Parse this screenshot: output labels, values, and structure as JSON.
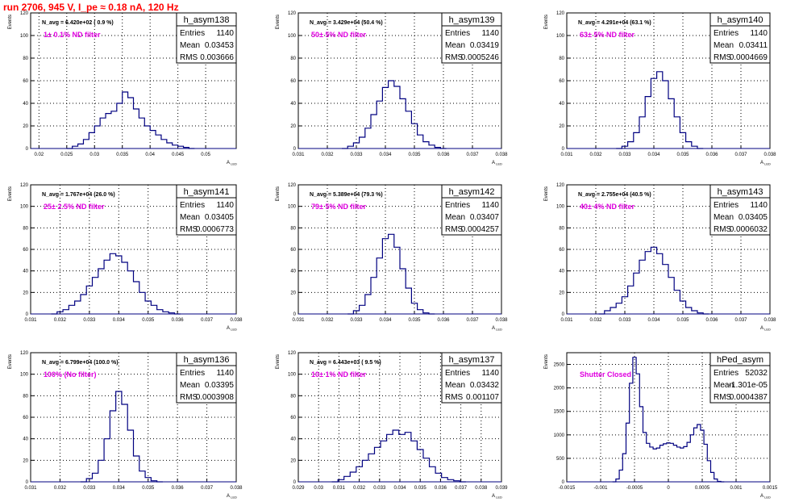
{
  "page_title": "run 2706,   945 V, I_pe ≈ 0.18 nA, 120 Hz",
  "colors": {
    "histogram": "#000080",
    "filter_label": "#e000e0",
    "title": "#ff0000",
    "grid": "#000000"
  },
  "chart_data": [
    {
      "type": "histogram",
      "name": "h_asym138",
      "stats": [
        [
          "Entries",
          "1140"
        ],
        [
          "Mean",
          "0.03453"
        ],
        [
          "RMS",
          "0.003666"
        ]
      ],
      "navg": "N_avg = 6.420e+02 ( 0.9 %)",
      "label": "1± 0.1% ND filter",
      "xlabel": "A_LED",
      "ylabel": "Events",
      "xlim": [
        0.0185,
        0.0555
      ],
      "ylim": [
        0,
        120
      ],
      "xticks": [
        "0.02",
        "0.025",
        "0.03",
        "0.035",
        "0.04",
        "0.045",
        "0.05"
      ],
      "yticks": [
        "0",
        "20",
        "40",
        "60",
        "80",
        "100",
        "120"
      ],
      "bins": [
        [
          0.0255,
          0
        ],
        [
          0.0265,
          2
        ],
        [
          0.0275,
          4
        ],
        [
          0.0285,
          8
        ],
        [
          0.0295,
          14
        ],
        [
          0.0305,
          20
        ],
        [
          0.0315,
          27
        ],
        [
          0.0325,
          31
        ],
        [
          0.0335,
          33
        ],
        [
          0.0345,
          40
        ],
        [
          0.0355,
          50
        ],
        [
          0.0365,
          45
        ],
        [
          0.0375,
          35
        ],
        [
          0.0385,
          27
        ],
        [
          0.0395,
          20
        ],
        [
          0.0405,
          16
        ],
        [
          0.0415,
          12
        ],
        [
          0.0425,
          8
        ],
        [
          0.0435,
          5
        ],
        [
          0.0445,
          3
        ],
        [
          0.0455,
          2
        ],
        [
          0.0465,
          1
        ],
        [
          0.0475,
          0
        ]
      ]
    },
    {
      "type": "histogram",
      "name": "h_asym139",
      "stats": [
        [
          "Entries",
          "1140"
        ],
        [
          "Mean",
          "0.03419"
        ],
        [
          "RMS",
          "0.0005246"
        ]
      ],
      "navg": "N_avg = 3.429e+04 (50.4 %)",
      "label": "50± 5% ND filter",
      "xlabel": "A_LED",
      "ylabel": "Events",
      "xlim": [
        0.031,
        0.038
      ],
      "ylim": [
        0,
        120
      ],
      "xticks": [
        "0.031",
        "0.032",
        "0.033",
        "0.034",
        "0.035",
        "0.036",
        "0.037",
        "0.038"
      ],
      "yticks": [
        "0",
        "20",
        "40",
        "60",
        "80",
        "100",
        "120"
      ],
      "bins": [
        [
          0.0326,
          0
        ],
        [
          0.0328,
          2
        ],
        [
          0.033,
          5
        ],
        [
          0.0332,
          10
        ],
        [
          0.0334,
          18
        ],
        [
          0.0336,
          30
        ],
        [
          0.0338,
          42
        ],
        [
          0.034,
          54
        ],
        [
          0.0342,
          60
        ],
        [
          0.0344,
          55
        ],
        [
          0.0346,
          44
        ],
        [
          0.0348,
          33
        ],
        [
          0.035,
          22
        ],
        [
          0.0352,
          12
        ],
        [
          0.0354,
          6
        ],
        [
          0.0356,
          3
        ],
        [
          0.0358,
          1
        ],
        [
          0.036,
          0
        ]
      ]
    },
    {
      "type": "histogram",
      "name": "h_asym140",
      "stats": [
        [
          "Entries",
          "1140"
        ],
        [
          "Mean",
          "0.03411"
        ],
        [
          "RMS",
          "0.0004669"
        ]
      ],
      "navg": "N_avg = 4.291e+04 (63.1 %)",
      "label": "63± 5% ND filter",
      "xlabel": "A_LED",
      "ylabel": "Events",
      "xlim": [
        0.031,
        0.038
      ],
      "ylim": [
        0,
        120
      ],
      "xticks": [
        "0.031",
        "0.032",
        "0.033",
        "0.034",
        "0.035",
        "0.036",
        "0.037",
        "0.038"
      ],
      "yticks": [
        "0",
        "20",
        "40",
        "60",
        "80",
        "100",
        "120"
      ],
      "bins": [
        [
          0.0328,
          0
        ],
        [
          0.033,
          2
        ],
        [
          0.0332,
          6
        ],
        [
          0.0334,
          14
        ],
        [
          0.0336,
          28
        ],
        [
          0.0338,
          46
        ],
        [
          0.034,
          62
        ],
        [
          0.0342,
          68
        ],
        [
          0.0344,
          60
        ],
        [
          0.0346,
          44
        ],
        [
          0.0348,
          28
        ],
        [
          0.035,
          14
        ],
        [
          0.0352,
          6
        ],
        [
          0.0354,
          2
        ],
        [
          0.0356,
          0
        ]
      ]
    },
    {
      "type": "histogram",
      "name": "h_asym141",
      "stats": [
        [
          "Entries",
          "1140"
        ],
        [
          "Mean",
          "0.03405"
        ],
        [
          "RMS",
          "0.0006773"
        ]
      ],
      "navg": "N_avg = 1.767e+04 (26.0 %)",
      "label": "25± 2.5% ND filter",
      "xlabel": "A_LED",
      "ylabel": "Events",
      "xlim": [
        0.031,
        0.038
      ],
      "ylim": [
        0,
        120
      ],
      "xticks": [
        "0.031",
        "0.032",
        "0.033",
        "0.034",
        "0.035",
        "0.036",
        "0.037",
        "0.038"
      ],
      "yticks": [
        "0",
        "20",
        "40",
        "60",
        "80",
        "100",
        "120"
      ],
      "bins": [
        [
          0.0318,
          0
        ],
        [
          0.032,
          2
        ],
        [
          0.0322,
          4
        ],
        [
          0.0324,
          8
        ],
        [
          0.0326,
          12
        ],
        [
          0.0328,
          18
        ],
        [
          0.033,
          26
        ],
        [
          0.0332,
          34
        ],
        [
          0.0334,
          42
        ],
        [
          0.0336,
          50
        ],
        [
          0.0338,
          56
        ],
        [
          0.034,
          54
        ],
        [
          0.0342,
          48
        ],
        [
          0.0344,
          40
        ],
        [
          0.0346,
          30
        ],
        [
          0.0348,
          20
        ],
        [
          0.035,
          12
        ],
        [
          0.0352,
          8
        ],
        [
          0.0354,
          4
        ],
        [
          0.0356,
          2
        ],
        [
          0.0358,
          1
        ],
        [
          0.036,
          0
        ]
      ]
    },
    {
      "type": "histogram",
      "name": "h_asym142",
      "stats": [
        [
          "Entries",
          "1140"
        ],
        [
          "Mean",
          "0.03407"
        ],
        [
          "RMS",
          "0.0004257"
        ]
      ],
      "navg": "N_avg = 5.389e+04 (79.3 %)",
      "label": "79± 5% ND filter",
      "xlabel": "A_LED",
      "ylabel": "Events",
      "xlim": [
        0.031,
        0.038
      ],
      "ylim": [
        0,
        120
      ],
      "xticks": [
        "0.031",
        "0.032",
        "0.033",
        "0.034",
        "0.035",
        "0.036",
        "0.037",
        "0.038"
      ],
      "yticks": [
        "0",
        "20",
        "40",
        "60",
        "80",
        "100",
        "120"
      ],
      "bins": [
        [
          0.0328,
          0
        ],
        [
          0.033,
          3
        ],
        [
          0.0332,
          8
        ],
        [
          0.0334,
          18
        ],
        [
          0.0336,
          34
        ],
        [
          0.0338,
          52
        ],
        [
          0.034,
          70
        ],
        [
          0.0342,
          74
        ],
        [
          0.0344,
          62
        ],
        [
          0.0346,
          42
        ],
        [
          0.0348,
          24
        ],
        [
          0.035,
          10
        ],
        [
          0.0352,
          4
        ],
        [
          0.0354,
          1
        ],
        [
          0.0356,
          0
        ]
      ]
    },
    {
      "type": "histogram",
      "name": "h_asym143",
      "stats": [
        [
          "Entries",
          "1140"
        ],
        [
          "Mean",
          "0.03405"
        ],
        [
          "RMS",
          "0.0006032"
        ]
      ],
      "navg": "N_avg = 2.755e+04 (40.5 %)",
      "label": "40± 4% ND filter",
      "xlabel": "A_LED",
      "ylabel": "Events",
      "xlim": [
        0.031,
        0.038
      ],
      "ylim": [
        0,
        120
      ],
      "xticks": [
        "0.031",
        "0.032",
        "0.033",
        "0.034",
        "0.035",
        "0.036",
        "0.037",
        "0.038"
      ],
      "yticks": [
        "0",
        "20",
        "40",
        "60",
        "80",
        "100",
        "120"
      ],
      "bins": [
        [
          0.0322,
          0
        ],
        [
          0.0324,
          3
        ],
        [
          0.0326,
          6
        ],
        [
          0.0328,
          10
        ],
        [
          0.033,
          16
        ],
        [
          0.0332,
          26
        ],
        [
          0.0334,
          38
        ],
        [
          0.0336,
          50
        ],
        [
          0.0338,
          58
        ],
        [
          0.034,
          62
        ],
        [
          0.0342,
          56
        ],
        [
          0.0344,
          46
        ],
        [
          0.0346,
          34
        ],
        [
          0.0348,
          22
        ],
        [
          0.035,
          12
        ],
        [
          0.0352,
          6
        ],
        [
          0.0354,
          3
        ],
        [
          0.0356,
          1
        ],
        [
          0.0358,
          0
        ]
      ]
    },
    {
      "type": "histogram",
      "name": "h_asym136",
      "stats": [
        [
          "Entries",
          "1140"
        ],
        [
          "Mean",
          "0.03395"
        ],
        [
          "RMS",
          "0.0003908"
        ]
      ],
      "navg": "N_avg = 6.799e+04 (100.0 %)",
      "label": "100% (No filter)",
      "xlabel": "A_LED",
      "ylabel": "Events",
      "xlim": [
        0.031,
        0.038
      ],
      "ylim": [
        0,
        120
      ],
      "xticks": [
        "0.031",
        "0.032",
        "0.033",
        "0.034",
        "0.035",
        "0.036",
        "0.037",
        "0.038"
      ],
      "yticks": [
        "0",
        "20",
        "40",
        "60",
        "80",
        "100",
        "120"
      ],
      "bins": [
        [
          0.0328,
          0
        ],
        [
          0.033,
          3
        ],
        [
          0.0332,
          8
        ],
        [
          0.0334,
          20
        ],
        [
          0.0336,
          40
        ],
        [
          0.0338,
          66
        ],
        [
          0.034,
          84
        ],
        [
          0.0342,
          72
        ],
        [
          0.0344,
          48
        ],
        [
          0.0346,
          24
        ],
        [
          0.0348,
          10
        ],
        [
          0.035,
          4
        ],
        [
          0.0352,
          1
        ],
        [
          0.0354,
          0
        ]
      ]
    },
    {
      "type": "histogram",
      "name": "h_asym137",
      "stats": [
        [
          "Entries",
          "1140"
        ],
        [
          "Mean",
          "0.03432"
        ],
        [
          "RMS",
          "0.001107"
        ]
      ],
      "navg": "N_avg = 6.443e+03 ( 9.5 %)",
      "label": "10± 1% ND filter",
      "xlabel": "A_LED",
      "ylabel": "Events",
      "xlim": [
        0.029,
        0.039
      ],
      "ylim": [
        0,
        120
      ],
      "xticks": [
        "0.029",
        "0.03",
        "0.031",
        "0.032",
        "0.033",
        "0.034",
        "0.035",
        "0.036",
        "0.037",
        "0.038",
        "0.039"
      ],
      "yticks": [
        "0",
        "20",
        "40",
        "60",
        "80",
        "100",
        "120"
      ],
      "bins": [
        [
          0.0308,
          0
        ],
        [
          0.0311,
          2
        ],
        [
          0.0314,
          5
        ],
        [
          0.0317,
          9
        ],
        [
          0.032,
          14
        ],
        [
          0.0323,
          20
        ],
        [
          0.0326,
          26
        ],
        [
          0.0329,
          32
        ],
        [
          0.0332,
          38
        ],
        [
          0.0335,
          44
        ],
        [
          0.0338,
          48
        ],
        [
          0.0341,
          44
        ],
        [
          0.0344,
          46
        ],
        [
          0.0347,
          38
        ],
        [
          0.035,
          30
        ],
        [
          0.0353,
          22
        ],
        [
          0.0356,
          14
        ],
        [
          0.0359,
          8
        ],
        [
          0.0362,
          4
        ],
        [
          0.0365,
          2
        ],
        [
          0.0368,
          1
        ],
        [
          0.0371,
          0
        ]
      ]
    },
    {
      "type": "histogram",
      "name": "hPed_asym",
      "stats": [
        [
          "Entries",
          "52032"
        ],
        [
          "Mean",
          "-1.301e-05"
        ],
        [
          "RMS",
          "0.0004387"
        ]
      ],
      "navg": "",
      "label": "Shutter Closed",
      "xlabel": "A_LED",
      "ylabel": "Events",
      "xlim": [
        -0.0015,
        0.0015
      ],
      "ylim": [
        0,
        2750
      ],
      "xticks": [
        "-0.0015",
        "-0.001",
        "-0.0005",
        "0",
        "0.0005",
        "0.001",
        "0.0015"
      ],
      "yticks": [
        "0",
        "500",
        "1000",
        "1500",
        "2000",
        "2500"
      ],
      "bins": [
        [
          -0.0008,
          0
        ],
        [
          -0.00075,
          60
        ],
        [
          -0.0007,
          250
        ],
        [
          -0.00065,
          600
        ],
        [
          -0.0006,
          1250
        ],
        [
          -0.00055,
          2100
        ],
        [
          -0.0005,
          2650
        ],
        [
          -0.00045,
          2300
        ],
        [
          -0.0004,
          1600
        ],
        [
          -0.00035,
          1050
        ],
        [
          -0.0003,
          820
        ],
        [
          -0.00025,
          740
        ],
        [
          -0.0002,
          700
        ],
        [
          -0.00015,
          720
        ],
        [
          -0.0001,
          780
        ],
        [
          -5e-05,
          810
        ],
        [
          0,
          830
        ],
        [
          5e-05,
          820
        ],
        [
          0.0001,
          780
        ],
        [
          0.00015,
          740
        ],
        [
          0.0002,
          720
        ],
        [
          0.00025,
          750
        ],
        [
          0.0003,
          840
        ],
        [
          0.00035,
          1000
        ],
        [
          0.0004,
          1150
        ],
        [
          0.00045,
          1220
        ],
        [
          0.0005,
          1100
        ],
        [
          0.00055,
          800
        ],
        [
          0.0006,
          450
        ],
        [
          0.00065,
          200
        ],
        [
          0.0007,
          60
        ],
        [
          0.00075,
          10
        ],
        [
          0.0008,
          0
        ]
      ]
    }
  ]
}
